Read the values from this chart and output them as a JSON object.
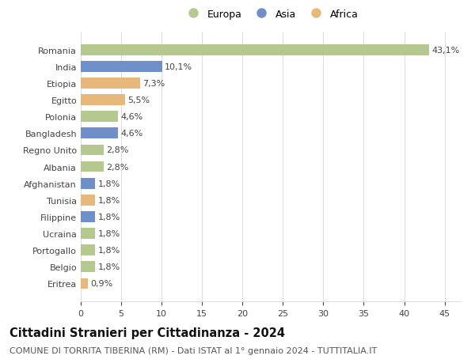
{
  "categories": [
    "Romania",
    "India",
    "Etiopia",
    "Egitto",
    "Polonia",
    "Bangladesh",
    "Regno Unito",
    "Albania",
    "Afghanistan",
    "Tunisia",
    "Filippine",
    "Ucraina",
    "Portogallo",
    "Belgio",
    "Eritrea"
  ],
  "values": [
    43.1,
    10.1,
    7.3,
    5.5,
    4.6,
    4.6,
    2.8,
    2.8,
    1.8,
    1.8,
    1.8,
    1.8,
    1.8,
    1.8,
    0.9
  ],
  "labels": [
    "43,1%",
    "10,1%",
    "7,3%",
    "5,5%",
    "4,6%",
    "4,6%",
    "2,8%",
    "2,8%",
    "1,8%",
    "1,8%",
    "1,8%",
    "1,8%",
    "1,8%",
    "1,8%",
    "0,9%"
  ],
  "continent": [
    "Europa",
    "Asia",
    "Africa",
    "Africa",
    "Europa",
    "Asia",
    "Europa",
    "Europa",
    "Asia",
    "Africa",
    "Asia",
    "Europa",
    "Europa",
    "Europa",
    "Africa"
  ],
  "colors": {
    "Europa": "#b5c98e",
    "Asia": "#6e8fc9",
    "Africa": "#e8b87a"
  },
  "title": "Cittadini Stranieri per Cittadinanza - 2024",
  "subtitle": "COMUNE DI TORRITA TIBERINA (RM) - Dati ISTAT al 1° gennaio 2024 - TUTTITALIA.IT",
  "xlim": [
    0,
    47
  ],
  "xticks": [
    0,
    5,
    10,
    15,
    20,
    25,
    30,
    35,
    40,
    45
  ],
  "background_color": "#ffffff",
  "bar_height": 0.65,
  "grid_color": "#dddddd",
  "title_fontsize": 10.5,
  "subtitle_fontsize": 8,
  "tick_fontsize": 8,
  "label_fontsize": 8,
  "legend_fontsize": 9
}
